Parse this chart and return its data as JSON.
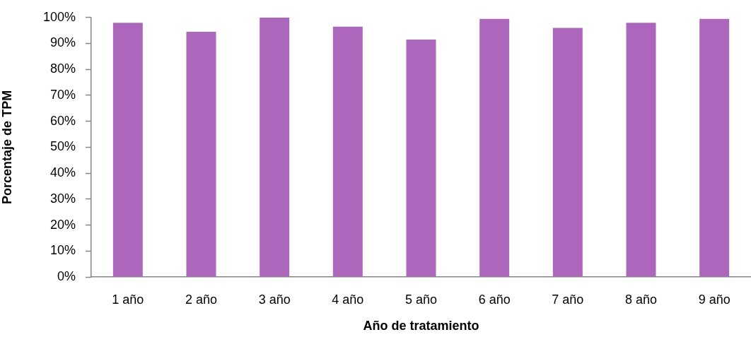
{
  "chart_data": {
    "type": "bar",
    "xlabel": "Año de tratamiento",
    "ylabel": "Porcentaje de TPM",
    "categories": [
      "1 año",
      "2 año",
      "3 año",
      "4 año",
      "5 año",
      "6 año",
      "7 año",
      "8 año",
      "9 año"
    ],
    "values": [
      98,
      94.5,
      100,
      96.5,
      91.5,
      99.5,
      96,
      98,
      99.5
    ],
    "color": "#ac67bd",
    "ylim": [
      0,
      100
    ],
    "yticks": [
      {
        "value": 0,
        "label": "0%"
      },
      {
        "value": 10,
        "label": "10%"
      },
      {
        "value": 20,
        "label": "20%"
      },
      {
        "value": 30,
        "label": "30%"
      },
      {
        "value": 40,
        "label": "40%"
      },
      {
        "value": 50,
        "label": "50%"
      },
      {
        "value": 60,
        "label": "60%"
      },
      {
        "value": 70,
        "label": "70%"
      },
      {
        "value": 80,
        "label": "80%"
      },
      {
        "value": 90,
        "label": "90%"
      },
      {
        "value": 100,
        "label": "100%"
      }
    ]
  }
}
